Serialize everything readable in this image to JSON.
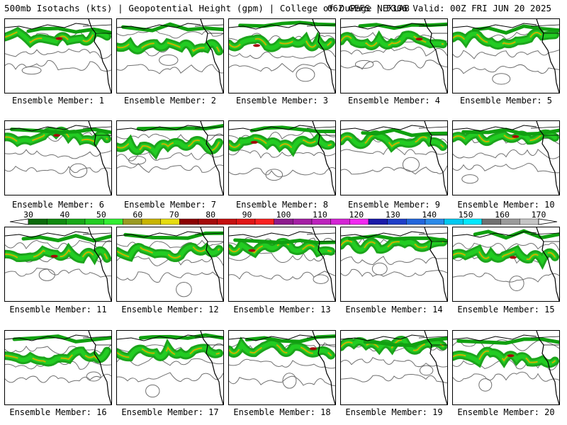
{
  "header": {
    "left_title": "500mb Isotachs (kts) | Geopotential Height (gpm) | College of DuPage NEXLAB",
    "right_title": "06Z GEFS | F306 Valid: 00Z FRI JUN 20 2025"
  },
  "members": [
    {
      "label": "Ensemble Member: 1"
    },
    {
      "label": "Ensemble Member: 2"
    },
    {
      "label": "Ensemble Member: 3"
    },
    {
      "label": "Ensemble Member: 4"
    },
    {
      "label": "Ensemble Member: 5"
    },
    {
      "label": "Ensemble Member: 6"
    },
    {
      "label": "Ensemble Member: 7"
    },
    {
      "label": "Ensemble Member: 8"
    },
    {
      "label": "Ensemble Member: 9"
    },
    {
      "label": "Ensemble Member: 10"
    },
    {
      "label": "Ensemble Member: 11"
    },
    {
      "label": "Ensemble Member: 12"
    },
    {
      "label": "Ensemble Member: 13"
    },
    {
      "label": "Ensemble Member: 14"
    },
    {
      "label": "Ensemble Member: 15"
    },
    {
      "label": "Ensemble Member: 16"
    },
    {
      "label": "Ensemble Member: 17"
    },
    {
      "label": "Ensemble Member: 18"
    },
    {
      "label": "Ensemble Member: 19"
    },
    {
      "label": "Ensemble Member: 20"
    }
  ],
  "colorbar": {
    "ticks": [
      "30",
      "40",
      "50",
      "60",
      "70",
      "80",
      "90",
      "100",
      "110",
      "120",
      "130",
      "140",
      "150",
      "160",
      "170"
    ],
    "colors": [
      "#0b6b0b",
      "#0f8a0f",
      "#18a818",
      "#22cc22",
      "#33ee33",
      "#9a9a22",
      "#c8b400",
      "#e6dc10",
      "#8b0000",
      "#a40a0a",
      "#c41010",
      "#e01515",
      "#f82020",
      "#8c1a8c",
      "#a41ea4",
      "#bc22bc",
      "#d424d4",
      "#f028f0",
      "#1a1aa8",
      "#1e3ec8",
      "#2266dc",
      "#2a8ae8",
      "#00c8f0",
      "#00e8ff",
      "#707070",
      "#9a9a9a",
      "#c4c4c4"
    ]
  },
  "map_colors": {
    "jet_low": "#10a010",
    "jet_mid": "#22cc22",
    "jet_high": "#c8b400",
    "jet_core": "#a40a0a",
    "height_contour": "#707070",
    "coastline": "#000000"
  }
}
